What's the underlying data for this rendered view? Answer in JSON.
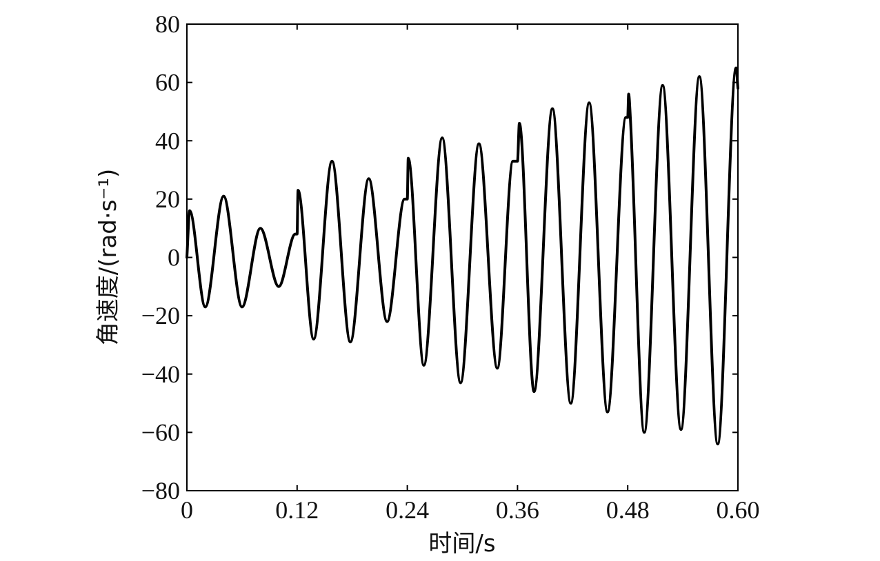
{
  "chart_data": {
    "type": "line",
    "xlabel": "时间/s",
    "ylabel": "角速度/(rad·s⁻¹)",
    "xlim": [
      0,
      0.6
    ],
    "ylim": [
      -80,
      80
    ],
    "xticks": [
      0,
      0.12,
      0.24,
      0.36,
      0.48,
      0.6
    ],
    "xtick_labels": [
      "0",
      "0.12",
      "0.24",
      "0.36",
      "0.48",
      "0.60"
    ],
    "yticks": [
      -80,
      -60,
      -40,
      -20,
      0,
      20,
      40,
      60,
      80
    ],
    "ytick_labels": [
      "−80",
      "−60",
      "−40",
      "−20",
      "0",
      "20",
      "40",
      "60",
      "80"
    ],
    "grid": false,
    "series": [
      {
        "x": [
          0,
          0.003,
          0.02,
          0.04,
          0.06,
          0.08,
          0.1,
          0.118,
          0.12,
          0.121,
          0.138,
          0.158,
          0.178,
          0.198,
          0.218,
          0.237,
          0.24,
          0.241,
          0.258,
          0.278,
          0.298,
          0.318,
          0.338,
          0.355,
          0.36,
          0.362,
          0.378,
          0.398,
          0.418,
          0.438,
          0.458,
          0.478,
          0.48,
          0.481,
          0.483,
          0.498,
          0.518,
          0.538,
          0.558,
          0.578,
          0.598,
          0.6
        ],
        "y": [
          0,
          16,
          -17,
          21,
          -17,
          10,
          -10,
          8,
          8,
          23,
          -28,
          33,
          -29,
          27,
          -22,
          20,
          20,
          34,
          -37,
          41,
          -43,
          39,
          -38,
          33,
          33,
          46,
          -46,
          51,
          -50,
          53,
          -53,
          48,
          48,
          56,
          47,
          -60,
          59,
          -59,
          62,
          -64,
          65,
          58
        ]
      }
    ]
  }
}
